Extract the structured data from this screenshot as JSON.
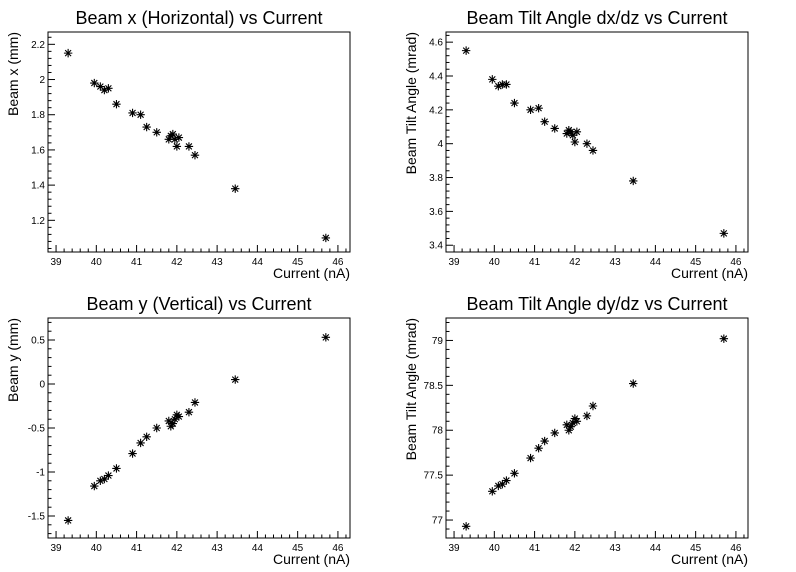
{
  "chart_data": [
    {
      "type": "scatter",
      "title": "Beam x (Horizontal) vs Current",
      "xlabel": "Current (nA)",
      "ylabel": "Beam x (mm)",
      "xlim": [
        38.8,
        46.3
      ],
      "ylim": [
        1.02,
        2.27
      ],
      "xticks": [
        39,
        40,
        41,
        42,
        43,
        44,
        45,
        46
      ],
      "yticks": [
        1.2,
        1.4,
        1.6,
        1.8,
        2,
        2.2
      ],
      "marker": "asterisk",
      "x": [
        39.3,
        39.95,
        40.1,
        40.2,
        40.3,
        40.5,
        40.9,
        41.1,
        41.25,
        41.5,
        41.8,
        41.85,
        41.9,
        41.95,
        42.0,
        42.05,
        42.3,
        42.45,
        43.45,
        45.7
      ],
      "y": [
        2.15,
        1.98,
        1.96,
        1.94,
        1.95,
        1.86,
        1.81,
        1.8,
        1.73,
        1.7,
        1.66,
        1.68,
        1.69,
        1.66,
        1.62,
        1.67,
        1.62,
        1.57,
        1.38,
        1.1
      ]
    },
    {
      "type": "scatter",
      "title": "Beam Tilt Angle dx/dz vs Current",
      "xlabel": "Current (nA)",
      "ylabel": "Beam Tilt Angle (mrad)",
      "xlim": [
        38.8,
        46.3
      ],
      "ylim": [
        3.36,
        4.66
      ],
      "xticks": [
        39,
        40,
        41,
        42,
        43,
        44,
        45,
        46
      ],
      "yticks": [
        3.4,
        3.6,
        3.8,
        4,
        4.2,
        4.4,
        4.6
      ],
      "marker": "asterisk",
      "x": [
        39.3,
        39.95,
        40.1,
        40.2,
        40.3,
        40.5,
        40.9,
        41.1,
        41.25,
        41.5,
        41.8,
        41.85,
        41.9,
        41.95,
        42.0,
        42.05,
        42.3,
        42.45,
        43.45,
        45.7
      ],
      "y": [
        4.55,
        4.38,
        4.34,
        4.35,
        4.35,
        4.24,
        4.2,
        4.21,
        4.13,
        4.09,
        4.06,
        4.08,
        4.07,
        4.05,
        4.01,
        4.07,
        4.0,
        3.96,
        3.78,
        3.47
      ]
    },
    {
      "type": "scatter",
      "title": "Beam y (Vertical) vs Current",
      "xlabel": "Current (nA)",
      "ylabel": "Beam y (mm)",
      "xlim": [
        38.8,
        46.3
      ],
      "ylim": [
        -1.75,
        0.75
      ],
      "xticks": [
        39,
        40,
        41,
        42,
        43,
        44,
        45,
        46
      ],
      "yticks": [
        -1.5,
        -1,
        -0.5,
        0,
        0.5
      ],
      "yticklabels": [
        "-1.5",
        "-1",
        "-0.5",
        "0",
        "0.5"
      ],
      "marker": "asterisk",
      "x": [
        39.3,
        39.95,
        40.1,
        40.2,
        40.3,
        40.5,
        40.9,
        41.1,
        41.25,
        41.5,
        41.8,
        41.85,
        41.9,
        41.95,
        42.0,
        42.05,
        42.3,
        42.45,
        43.45,
        45.7
      ],
      "y": [
        -1.55,
        -1.16,
        -1.1,
        -1.08,
        -1.04,
        -0.96,
        -0.79,
        -0.67,
        -0.6,
        -0.5,
        -0.42,
        -0.48,
        -0.45,
        -0.4,
        -0.35,
        -0.37,
        -0.32,
        -0.21,
        0.05,
        0.53
      ]
    },
    {
      "type": "scatter",
      "title": "Beam Tilt Angle dy/dz vs Current",
      "xlabel": "Current (nA)",
      "ylabel": "Beam Tilt Angle (mrad)",
      "xlim": [
        38.8,
        46.3
      ],
      "ylim": [
        76.8,
        79.25
      ],
      "xticks": [
        39,
        40,
        41,
        42,
        43,
        44,
        45,
        46
      ],
      "yticks": [
        77,
        77.5,
        78,
        78.5,
        79
      ],
      "marker": "asterisk",
      "x": [
        39.3,
        39.95,
        40.1,
        40.2,
        40.3,
        40.5,
        40.9,
        41.1,
        41.25,
        41.5,
        41.8,
        41.85,
        41.9,
        41.95,
        42.0,
        42.05,
        42.3,
        42.45,
        43.45,
        45.7
      ],
      "y": [
        76.93,
        77.32,
        77.38,
        77.4,
        77.44,
        77.52,
        77.69,
        77.8,
        77.88,
        77.97,
        78.06,
        78.0,
        78.04,
        78.08,
        78.13,
        78.1,
        78.16,
        78.27,
        78.52,
        79.02
      ]
    }
  ]
}
